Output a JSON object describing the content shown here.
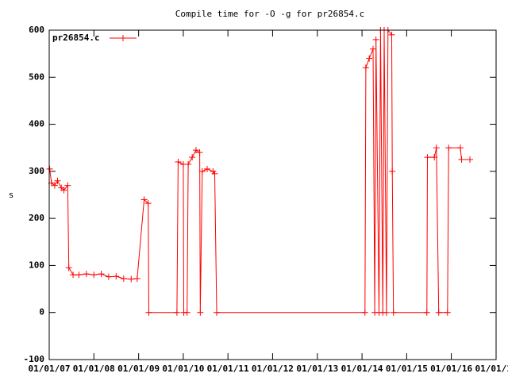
{
  "chart_data": {
    "type": "line",
    "title": "Compile time for -O -g for pr26854.c",
    "ylabel": "s",
    "legend": "top-left",
    "grid": false,
    "xlim": [
      "2007-01-01",
      "2017-01-01"
    ],
    "xticks": [
      {
        "value": "2007-01-01",
        "label": "01/01/07"
      },
      {
        "value": "2008-01-01",
        "label": "01/01/08"
      },
      {
        "value": "2009-01-01",
        "label": "01/01/09"
      },
      {
        "value": "2010-01-01",
        "label": "01/01/10"
      },
      {
        "value": "2011-01-01",
        "label": "01/01/11"
      },
      {
        "value": "2012-01-01",
        "label": "01/01/12"
      },
      {
        "value": "2013-01-01",
        "label": "01/01/13"
      },
      {
        "value": "2014-01-01",
        "label": "01/01/14"
      },
      {
        "value": "2015-01-01",
        "label": "01/01/15"
      },
      {
        "value": "2016-01-01",
        "label": "01/01/16"
      },
      {
        "value": "2017-01-01",
        "label": "01/01/17"
      }
    ],
    "ylim": [
      -100,
      600
    ],
    "yticks": [
      -100,
      0,
      100,
      200,
      300,
      400,
      500,
      600
    ],
    "x": [
      "2007-01-05",
      "2007-01-20",
      "2007-02-15",
      "2007-03-10",
      "2007-04-10",
      "2007-05-01",
      "2007-06-01",
      "2007-06-10",
      "2007-07-15",
      "2007-09-01",
      "2007-11-01",
      "2008-01-01",
      "2008-03-01",
      "2008-05-01",
      "2008-07-01",
      "2008-09-01",
      "2008-11-01",
      "2008-12-20",
      "2009-02-15",
      "2009-03-20",
      "2009-03-25",
      "2009-11-10",
      "2009-11-20",
      "2010-01-01",
      "2010-01-05",
      "2010-02-01",
      "2010-02-10",
      "2010-03-15",
      "2010-04-15",
      "2010-05-15",
      "2010-05-20",
      "2010-06-05",
      "2010-07-15",
      "2010-09-01",
      "2010-09-15",
      "2010-10-01",
      "2014-01-25",
      "2014-02-01",
      "2014-03-01",
      "2014-04-01",
      "2014-04-15",
      "2014-04-25",
      "2014-05-20",
      "2014-06-01",
      "2014-06-20",
      "2014-07-01",
      "2014-07-20",
      "2014-08-01",
      "2014-09-01",
      "2014-09-05",
      "2014-09-15",
      "2015-06-15",
      "2015-06-20",
      "2015-08-15",
      "2015-09-01",
      "2015-09-20",
      "2015-12-01",
      "2015-12-10",
      "2016-03-15",
      "2016-03-25",
      "2016-06-01"
    ],
    "series": [
      {
        "name": "pr26854.c",
        "color": "#ff0000",
        "values": [
          305,
          275,
          270,
          280,
          265,
          260,
          270,
          95,
          80,
          80,
          82,
          80,
          82,
          76,
          77,
          72,
          71,
          72,
          240,
          232,
          0,
          0,
          320,
          315,
          0,
          0,
          315,
          330,
          345,
          340,
          0,
          300,
          305,
          300,
          295,
          0,
          0,
          520,
          540,
          560,
          0,
          580,
          0,
          600,
          0,
          600,
          0,
          600,
          590,
          300,
          0,
          0,
          330,
          330,
          350,
          0,
          0,
          350,
          350,
          325,
          325
        ]
      }
    ]
  }
}
